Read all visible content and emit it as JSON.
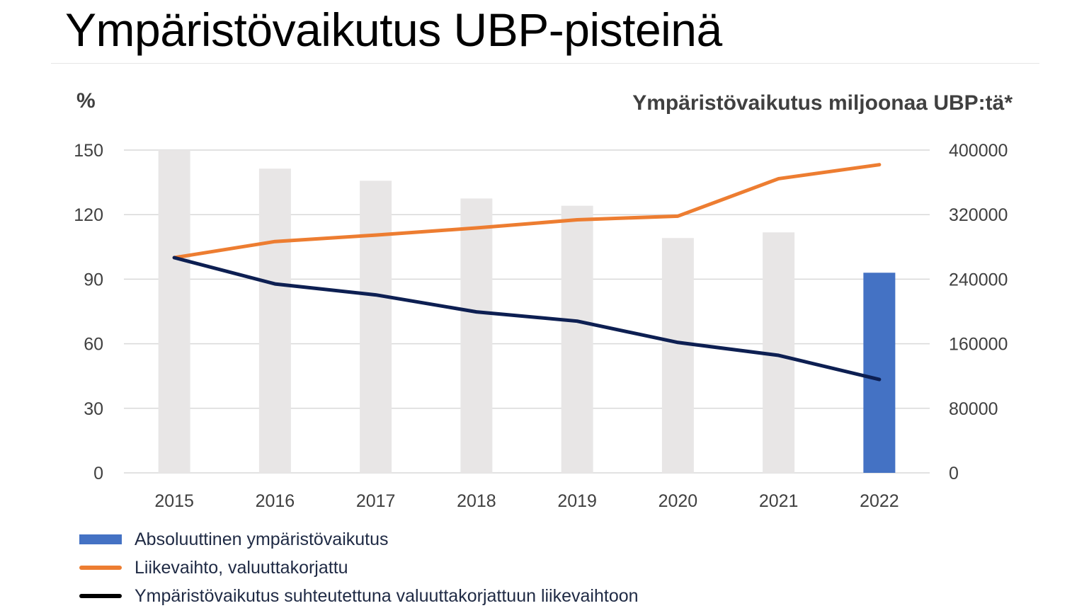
{
  "title": "Ympäristövaikutus UBP-pisteinä",
  "left_axis_unit": "%",
  "right_axis_unit": "Ympäristövaikutus miljoonaa UBP:tä*",
  "colors": {
    "bar_highlight": "#4472c4",
    "bar_muted": "#e8e6e6",
    "line_revenue": "#ed7d31",
    "line_relative": "#0d1f52",
    "grid": "#d9d9d9",
    "axis_text": "#404040"
  },
  "chart_data": {
    "type": "bar",
    "categories": [
      "2015",
      "2016",
      "2017",
      "2018",
      "2019",
      "2020",
      "2021",
      "2022"
    ],
    "y_left": {
      "ylim": [
        0,
        150
      ],
      "ticks": [
        "0",
        "30",
        "60",
        "90",
        "120",
        "150"
      ]
    },
    "y_right": {
      "ylim": [
        0,
        400000
      ],
      "ticks": [
        "0",
        "80000",
        "160000",
        "240000",
        "320000",
        "400000"
      ]
    },
    "grid": true,
    "legend_position": "bottom-left",
    "series": [
      {
        "name": "Absoluuttinen ympäristövaikutus",
        "kind": "bar",
        "axis": "right",
        "values": [
          400000,
          377000,
          362000,
          340000,
          331000,
          291000,
          298000,
          248000
        ],
        "highlight_index": 7
      },
      {
        "name": "Liikevaihto, valuuttakorjattu",
        "kind": "line",
        "axis": "left",
        "values": [
          100,
          107.5,
          110.5,
          113.8,
          117.6,
          119.3,
          136.7,
          143.2
        ]
      },
      {
        "name": "Ympäristövaikutus suhteutettuna valuuttakorjattuun liikevaihtoon",
        "kind": "line",
        "axis": "left",
        "values": [
          100,
          87.8,
          82.7,
          74.8,
          70.5,
          60.6,
          54.6,
          43.4
        ]
      }
    ]
  }
}
